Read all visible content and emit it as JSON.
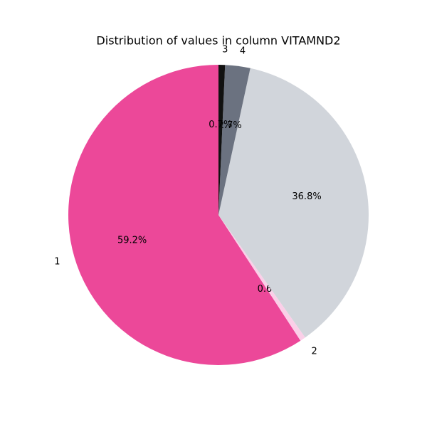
{
  "chart_data": {
    "type": "pie",
    "title": "Distribution of values in column VITAMND2",
    "categories": [
      "1",
      "2",
      null,
      "4",
      "3"
    ],
    "values": [
      59.2,
      0.6,
      36.8,
      2.7,
      0.7
    ],
    "value_labels": [
      "59.2%",
      "0.6%",
      "36.8%",
      "2.7%",
      "0.7%"
    ],
    "colors": [
      "#ec4899",
      "#fbcfe8",
      "#d1d5db",
      "#6b7280",
      "#111111"
    ]
  }
}
